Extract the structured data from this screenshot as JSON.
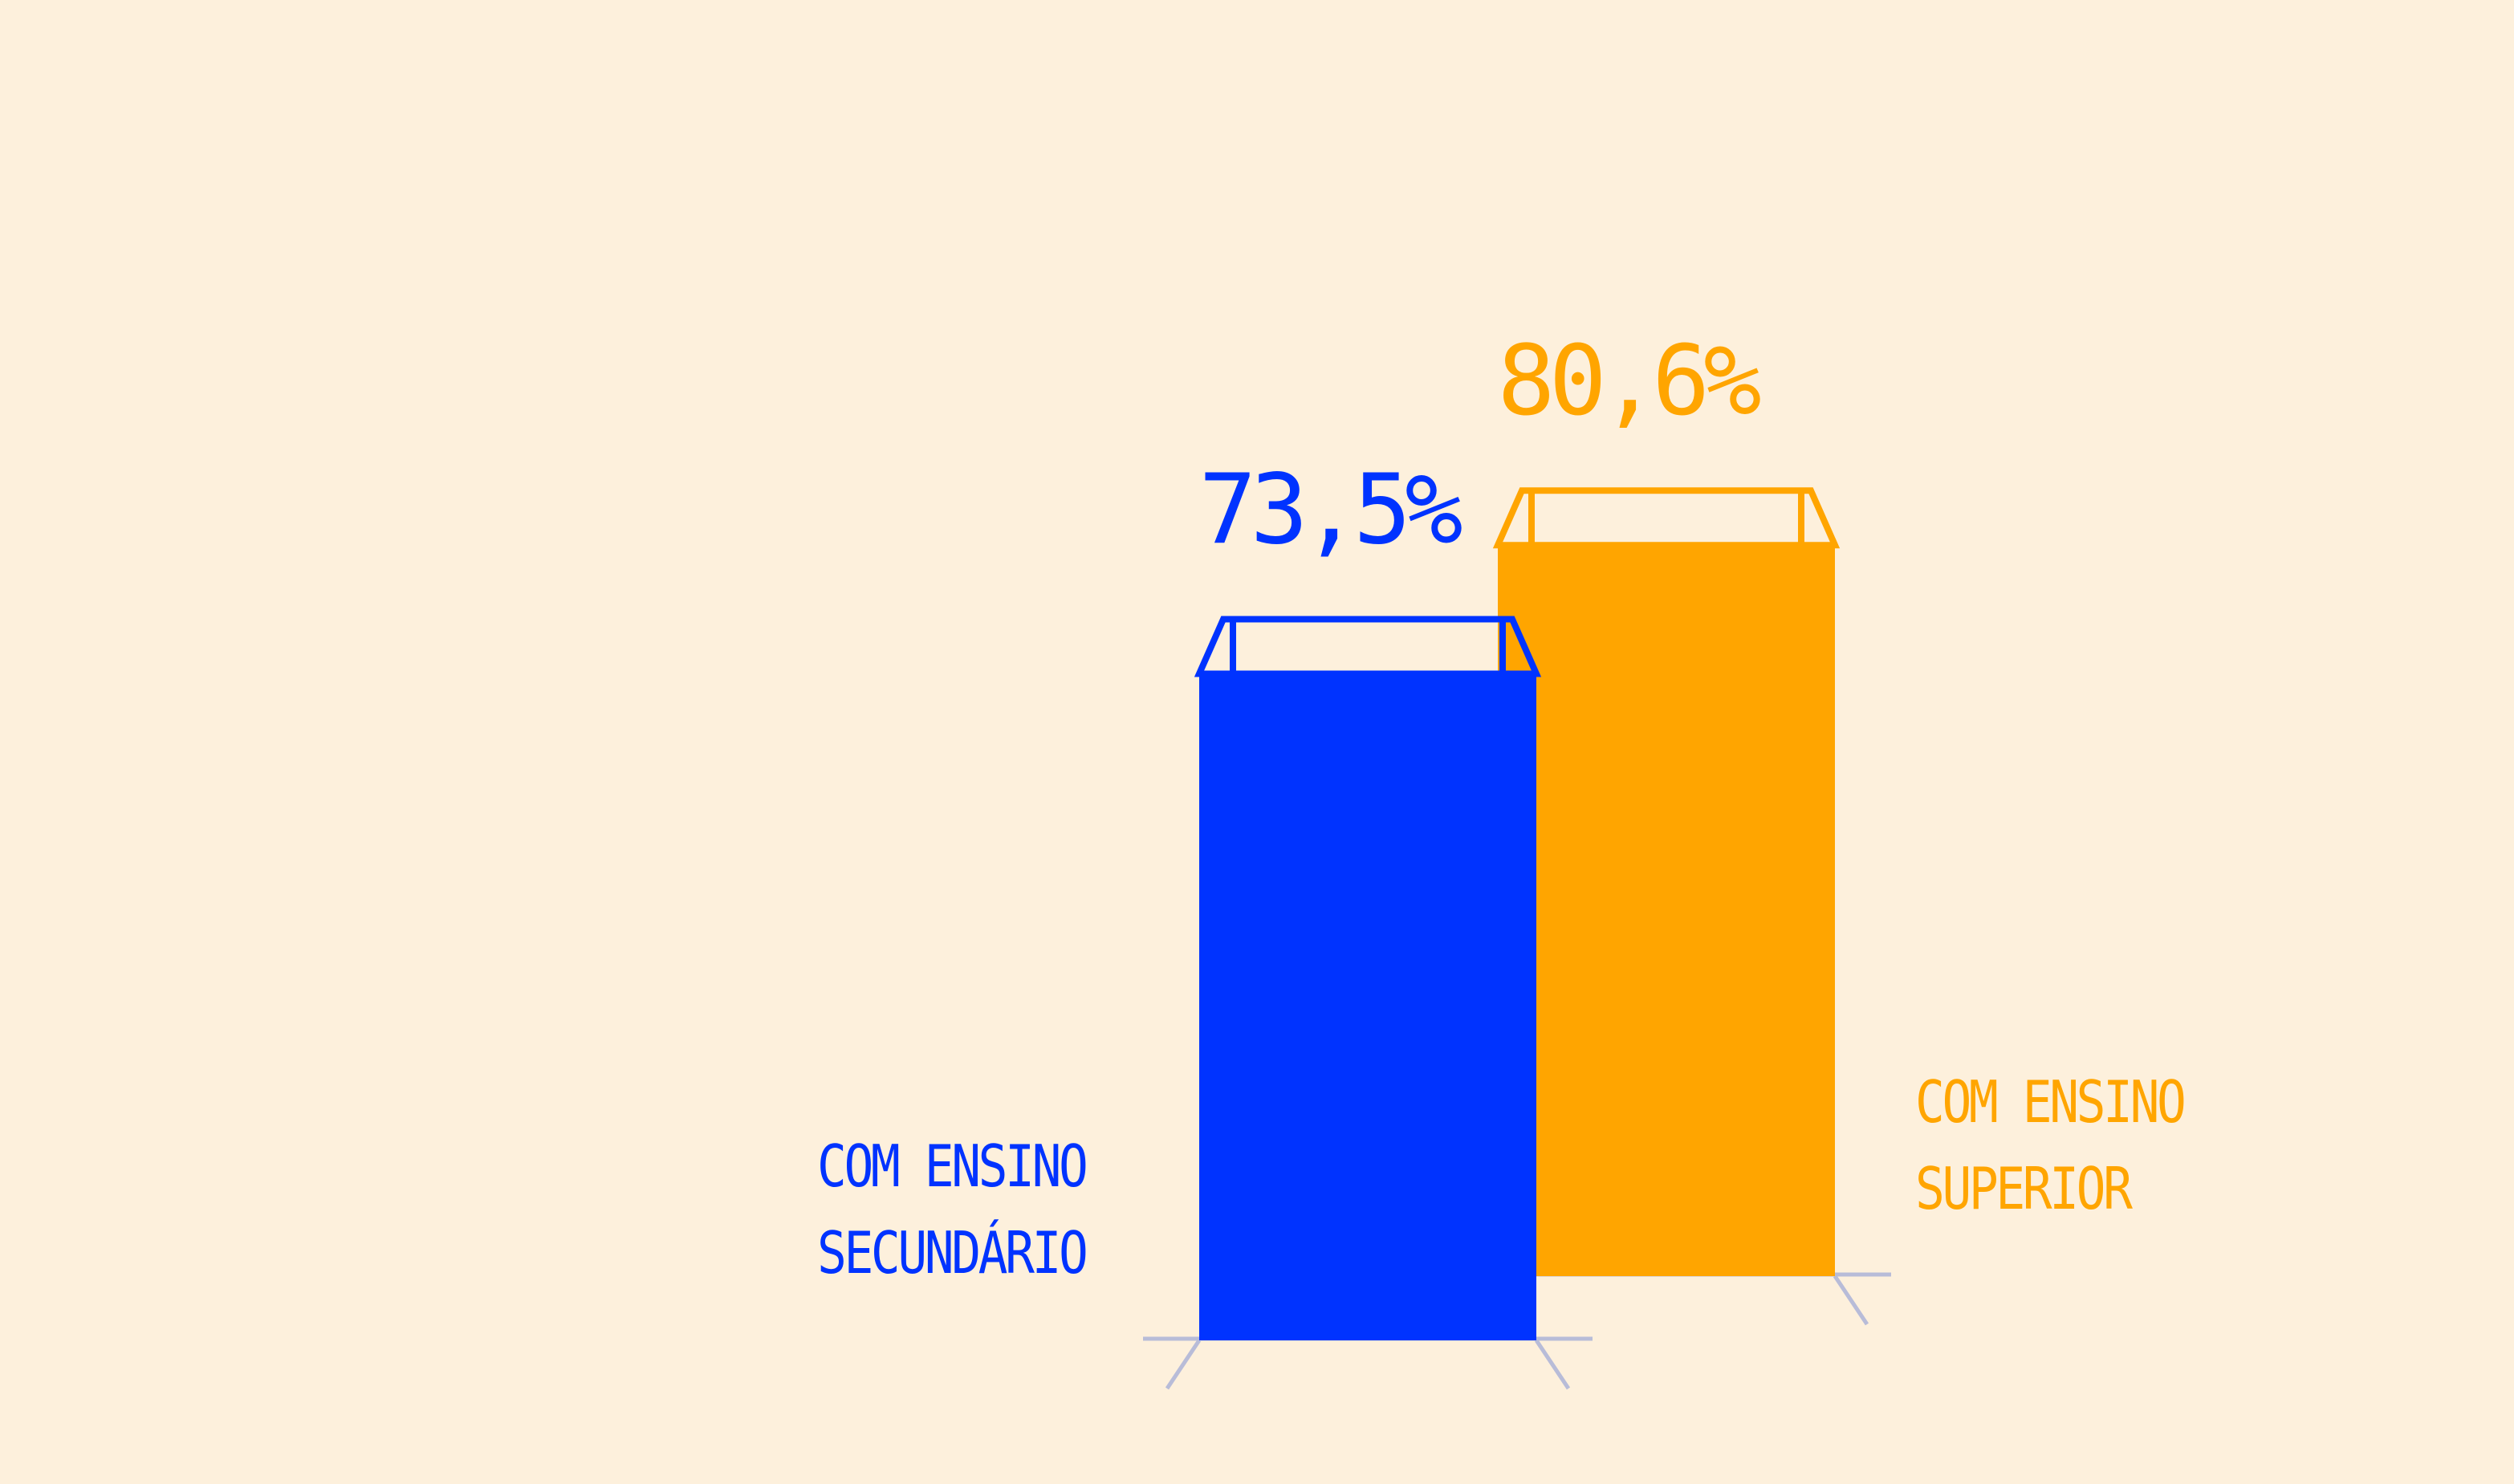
{
  "chart_data": {
    "type": "bar",
    "categories": [
      "COM ENSINO SECUNDÁRIO",
      "COM ENSINO SUPERIOR"
    ],
    "values": [
      73.5,
      80.6
    ],
    "value_labels": [
      "73,5%",
      "80,6%"
    ],
    "colors": [
      "#0033ff",
      "#ffa500"
    ]
  }
}
